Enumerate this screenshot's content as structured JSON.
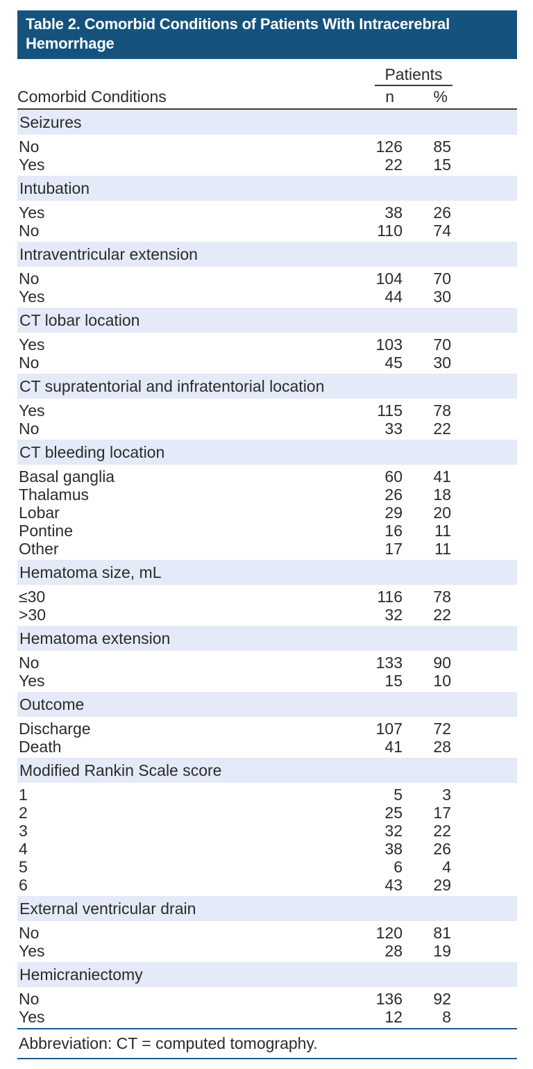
{
  "title": "Table 2. Comorbid Conditions of Patients With Intracerebral Hemorrhage",
  "columns": {
    "group": "Patients",
    "label": "Comorbid Conditions",
    "n": "n",
    "pct": "%"
  },
  "sections": [
    {
      "header": "Seizures",
      "rows": [
        {
          "label": "No",
          "n": "126",
          "pct": "85"
        },
        {
          "label": "Yes",
          "n": "22",
          "pct": "15"
        }
      ]
    },
    {
      "header": "Intubation",
      "rows": [
        {
          "label": "Yes",
          "n": "38",
          "pct": "26"
        },
        {
          "label": "No",
          "n": "110",
          "pct": "74"
        }
      ]
    },
    {
      "header": "Intraventricular extension",
      "rows": [
        {
          "label": "No",
          "n": "104",
          "pct": "70"
        },
        {
          "label": "Yes",
          "n": "44",
          "pct": "30"
        }
      ]
    },
    {
      "header": "CT lobar location",
      "rows": [
        {
          "label": "Yes",
          "n": "103",
          "pct": "70"
        },
        {
          "label": "No",
          "n": "45",
          "pct": "30"
        }
      ]
    },
    {
      "header": "CT supratentorial and infratentorial location",
      "rows": [
        {
          "label": "Yes",
          "n": "115",
          "pct": "78"
        },
        {
          "label": "No",
          "n": "33",
          "pct": "22"
        }
      ]
    },
    {
      "header": "CT bleeding location",
      "rows": [
        {
          "label": "Basal ganglia",
          "n": "60",
          "pct": "41"
        },
        {
          "label": "Thalamus",
          "n": "26",
          "pct": "18"
        },
        {
          "label": "Lobar",
          "n": "29",
          "pct": "20"
        },
        {
          "label": "Pontine",
          "n": "16",
          "pct": "11"
        },
        {
          "label": "Other",
          "n": "17",
          "pct": "11"
        }
      ]
    },
    {
      "header": "Hematoma size, mL",
      "rows": [
        {
          "label": "≤30",
          "n": "116",
          "pct": "78"
        },
        {
          "label": ">30",
          "n": "32",
          "pct": "22"
        }
      ]
    },
    {
      "header": "Hematoma extension",
      "rows": [
        {
          "label": "No",
          "n": "133",
          "pct": "90"
        },
        {
          "label": "Yes",
          "n": "15",
          "pct": "10"
        }
      ]
    },
    {
      "header": "Outcome",
      "rows": [
        {
          "label": "Discharge",
          "n": "107",
          "pct": "72"
        },
        {
          "label": "Death",
          "n": "41",
          "pct": "28"
        }
      ]
    },
    {
      "header": "Modified Rankin Scale score",
      "rows": [
        {
          "label": "1",
          "n": "5",
          "pct": "3"
        },
        {
          "label": "2",
          "n": "25",
          "pct": "17"
        },
        {
          "label": "3",
          "n": "32",
          "pct": "22"
        },
        {
          "label": "4",
          "n": "38",
          "pct": "26"
        },
        {
          "label": "5",
          "n": "6",
          "pct": "4"
        },
        {
          "label": "6",
          "n": "43",
          "pct": "29"
        }
      ]
    },
    {
      "header": "External ventricular drain",
      "rows": [
        {
          "label": "No",
          "n": "120",
          "pct": "81"
        },
        {
          "label": "Yes",
          "n": "28",
          "pct": "19"
        }
      ]
    },
    {
      "header": "Hemicraniectomy",
      "rows": [
        {
          "label": "No",
          "n": "136",
          "pct": "92"
        },
        {
          "label": "Yes",
          "n": "12",
          "pct": "8"
        }
      ]
    }
  ],
  "footnote": "Abbreviation: CT = computed tomography.",
  "colors": {
    "title_bg": "#15537E",
    "title_text": "#FFFFFF",
    "band_bg": "#E4EAF7",
    "text": "#2B2B2B",
    "rule_dark": "#3B3B3B",
    "rule_blue": "#1E5A8F"
  }
}
